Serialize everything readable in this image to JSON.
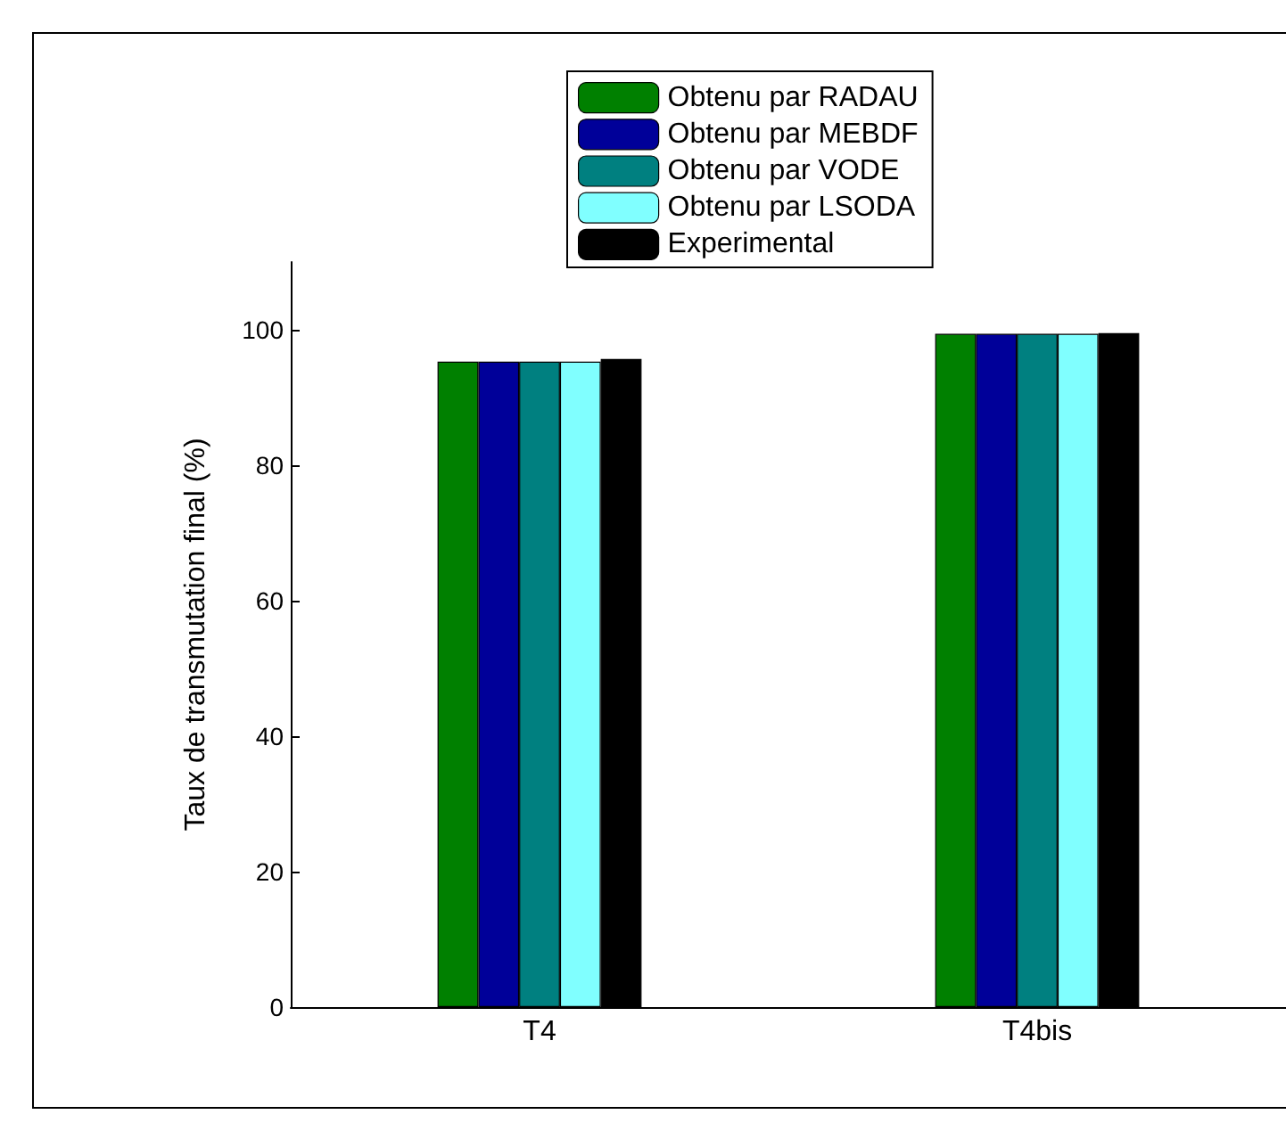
{
  "chart_data": {
    "type": "bar",
    "ylabel": "Taux de transmutation final (%)",
    "categories": [
      "T4",
      "T4bis"
    ],
    "series": [
      {
        "name": "Obtenu par RADAU",
        "color": "#008000",
        "values": [
          95.3,
          99.4
        ]
      },
      {
        "name": "Obtenu par MEBDF",
        "color": "#000099",
        "values": [
          95.3,
          99.4
        ]
      },
      {
        "name": "Obtenu par VODE",
        "color": "#008080",
        "values": [
          95.3,
          99.4
        ]
      },
      {
        "name": "Obtenu par LSODA",
        "color": "#80ffff",
        "values": [
          95.3,
          99.4
        ]
      },
      {
        "name": "Experimental",
        "color": "#000000",
        "values": [
          95.7,
          99.5
        ]
      }
    ],
    "ylim": [
      0,
      110
    ],
    "yticks": [
      0,
      20,
      40,
      60,
      80,
      100
    ],
    "grid": false,
    "legend": "top"
  }
}
